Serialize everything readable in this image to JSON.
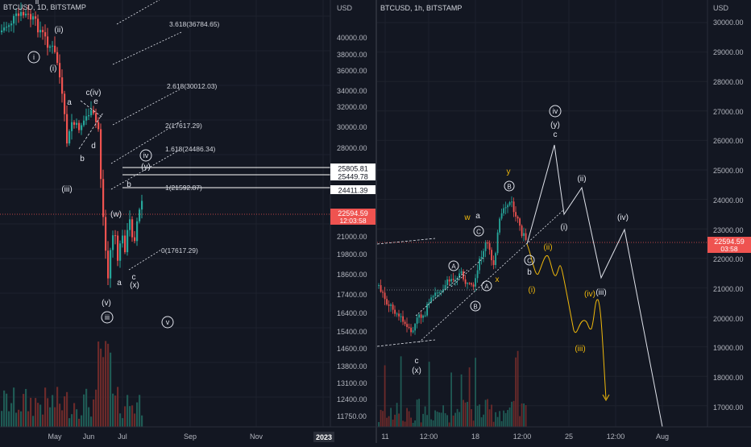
{
  "colors": {
    "background": "#131722",
    "grid": "#1e222d",
    "up": "#26a69a",
    "down": "#ef5350",
    "text": "#d1d4dc",
    "axis_text": "#b2b5be",
    "wave": "#e0e3eb",
    "alt_wave": "#f0b90b",
    "price_line": "#ef5350",
    "volume_up": "#1f5a54",
    "volume_down": "#6b2a2a"
  },
  "left_panel": {
    "symbol_label": "BTCUSD, 1D, BITSTAMP",
    "currency": "USD",
    "y_ticks": [
      "40000.00",
      "38000.00",
      "36000.00",
      "34000.00",
      "32000.00",
      "30000.00",
      "28000.00",
      "21000.00",
      "19800.00",
      "18600.00",
      "17400.00",
      "16400.00",
      "15400.00",
      "14600.00",
      "13800.00",
      "13100.00",
      "12400.00",
      "11750.00"
    ],
    "x_ticks": [
      "May",
      "Jun",
      "Jul",
      "Sep",
      "Nov",
      "2023"
    ],
    "price_tag": {
      "value": "22594.59",
      "countdown": "12:03:58"
    },
    "level_tags": [
      "25805.81",
      "25449.78",
      "24411.39"
    ],
    "fib_levels": [
      {
        "ratio": "3.618",
        "price": "36784.65"
      },
      {
        "ratio": "2.618",
        "price": "30012.03"
      },
      {
        "ratio": "2",
        "price": "17617.29"
      },
      {
        "ratio": "1.618",
        "price": "24486.34"
      },
      {
        "ratio": "1",
        "price": "21592.87"
      },
      {
        "ratio": "0",
        "price": "17617.29"
      }
    ],
    "wave_labels": [
      "ii",
      "i",
      "(ii)",
      "(i)",
      "a",
      "c(iv)",
      "e",
      "d",
      "b",
      "(iii)",
      "iv",
      "(y)",
      "(w)",
      "b",
      "a",
      "c",
      "(x)",
      "(v)",
      "iii",
      "v"
    ]
  },
  "right_panel": {
    "symbol_label": "BTCUSD, 1h, BITSTAMP",
    "currency": "USD",
    "y_ticks": [
      "30000.00",
      "29000.00",
      "28000.00",
      "27000.00",
      "26000.00",
      "25000.00",
      "24000.00",
      "23000.00",
      "22000.00",
      "21000.00",
      "20000.00",
      "19000.00",
      "18000.00",
      "17000.00"
    ],
    "x_ticks": [
      "11",
      "12:00",
      "18",
      "12:00",
      "25",
      "12:00",
      "Aug"
    ],
    "price_tag": {
      "value": "22594.59",
      "countdown": "03:58"
    },
    "wave_labels": [
      "iv",
      "(y)",
      "c",
      "y",
      "B",
      "w",
      "a",
      "C",
      "A",
      "A",
      "B",
      "C",
      "b",
      "x",
      "c",
      "(x)",
      "(ii)",
      "(i)",
      "(ii)",
      "(iv)",
      "(iii)",
      "(i)",
      "(iv)",
      "(iii)"
    ]
  },
  "chart_data": [
    {
      "type": "candlestick",
      "title": "BTCUSD, 1D, BITSTAMP",
      "x": [
        "May",
        "Jun",
        "Jul"
      ],
      "ylim": [
        11750,
        42000
      ],
      "last_price": 22594.59
    },
    {
      "type": "candlestick",
      "title": "BTCUSD, 1h, BITSTAMP",
      "x": [
        "11",
        "12:00",
        "18",
        "12:00"
      ],
      "ylim": [
        16500,
        30500
      ],
      "last_price": 22594.59
    }
  ]
}
